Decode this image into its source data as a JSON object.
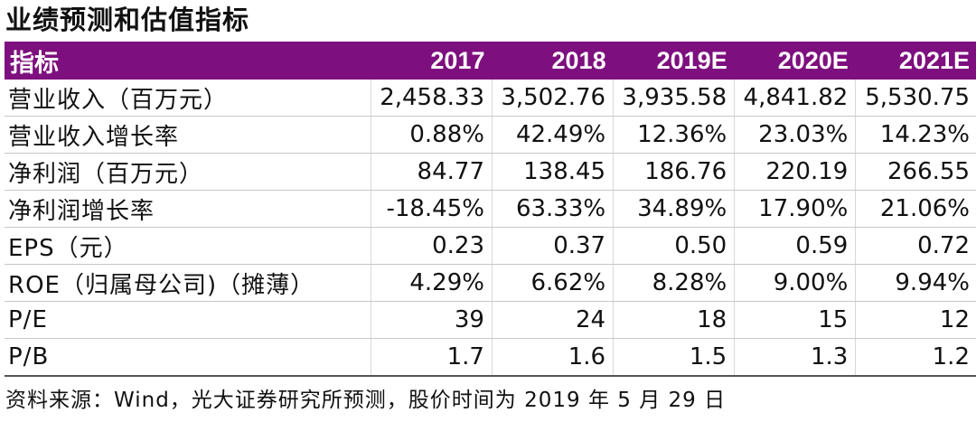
{
  "title": "业绩预测和估值指标",
  "table": {
    "headers": [
      "指标",
      "2017",
      "2018",
      "2019E",
      "2020E",
      "2021E"
    ],
    "rows": [
      [
        "营业收入（百万元）",
        "2,458.33",
        "3,502.76",
        "3,935.58",
        "4,841.82",
        "5,530.75"
      ],
      [
        "营业收入增长率",
        "0.88%",
        "42.49%",
        "12.36%",
        "23.03%",
        "14.23%"
      ],
      [
        "净利润（百万元）",
        "84.77",
        "138.45",
        "186.76",
        "220.19",
        "266.55"
      ],
      [
        "净利润增长率",
        "-18.45%",
        "63.33%",
        "34.89%",
        "17.90%",
        "21.06%"
      ],
      [
        "EPS（元）",
        "0.23",
        "0.37",
        "0.50",
        "0.59",
        "0.72"
      ],
      [
        "ROE（归属母公司)（摊薄）",
        "4.29%",
        "6.62%",
        "8.28%",
        "9.00%",
        "9.94%"
      ],
      [
        "P/E",
        "39",
        "24",
        "18",
        "15",
        "12"
      ],
      [
        "P/B",
        "1.7",
        "1.6",
        "1.5",
        "1.3",
        "1.2"
      ]
    ]
  },
  "source": "资料来源：Wind，光大证券研究所预测，股价时间为 2019 年 5 月 29 日",
  "colors": {
    "header_bg": "#7e0f7e",
    "header_text": "#ffffff"
  }
}
